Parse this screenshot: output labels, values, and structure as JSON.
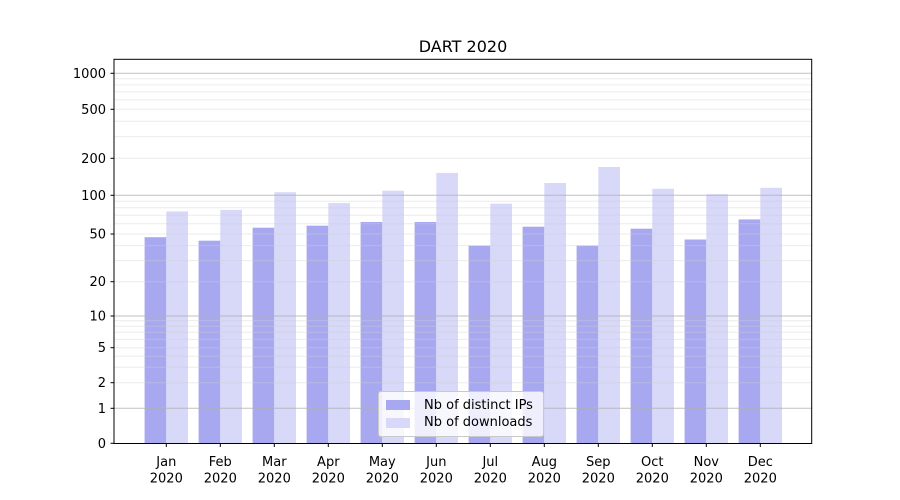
{
  "title": "DART 2020",
  "chart_data": {
    "type": "bar",
    "title": "DART 2020",
    "categories": [
      "Jan",
      "Feb",
      "Mar",
      "Apr",
      "May",
      "Jun",
      "Jul",
      "Aug",
      "Sep",
      "Oct",
      "Nov",
      "Dec"
    ],
    "category_year": "2020",
    "series": [
      {
        "name": "Nb of distinct IPs",
        "color": "#a8a8f0",
        "values": [
          47,
          44,
          56,
          58,
          62,
          62,
          40,
          57,
          40,
          55,
          45,
          65
        ]
      },
      {
        "name": "Nb of downloads",
        "color": "#d8d8f8",
        "values": [
          75,
          77,
          106,
          87,
          109,
          152,
          86,
          126,
          170,
          113,
          102,
          115
        ]
      }
    ],
    "xlabel": "",
    "ylabel": "",
    "yscale": "symlog",
    "yticks": [
      0,
      1,
      2,
      5,
      10,
      20,
      50,
      100,
      200,
      500,
      1000
    ],
    "ylim": [
      0,
      1300
    ],
    "grid": true,
    "legend_position": "lower center",
    "colors": {
      "major_grid": "#b0b0b0",
      "minor_grid": "#cfcfcf",
      "axis": "#000000",
      "background": "#ffffff",
      "tick_text": "#000000"
    }
  }
}
